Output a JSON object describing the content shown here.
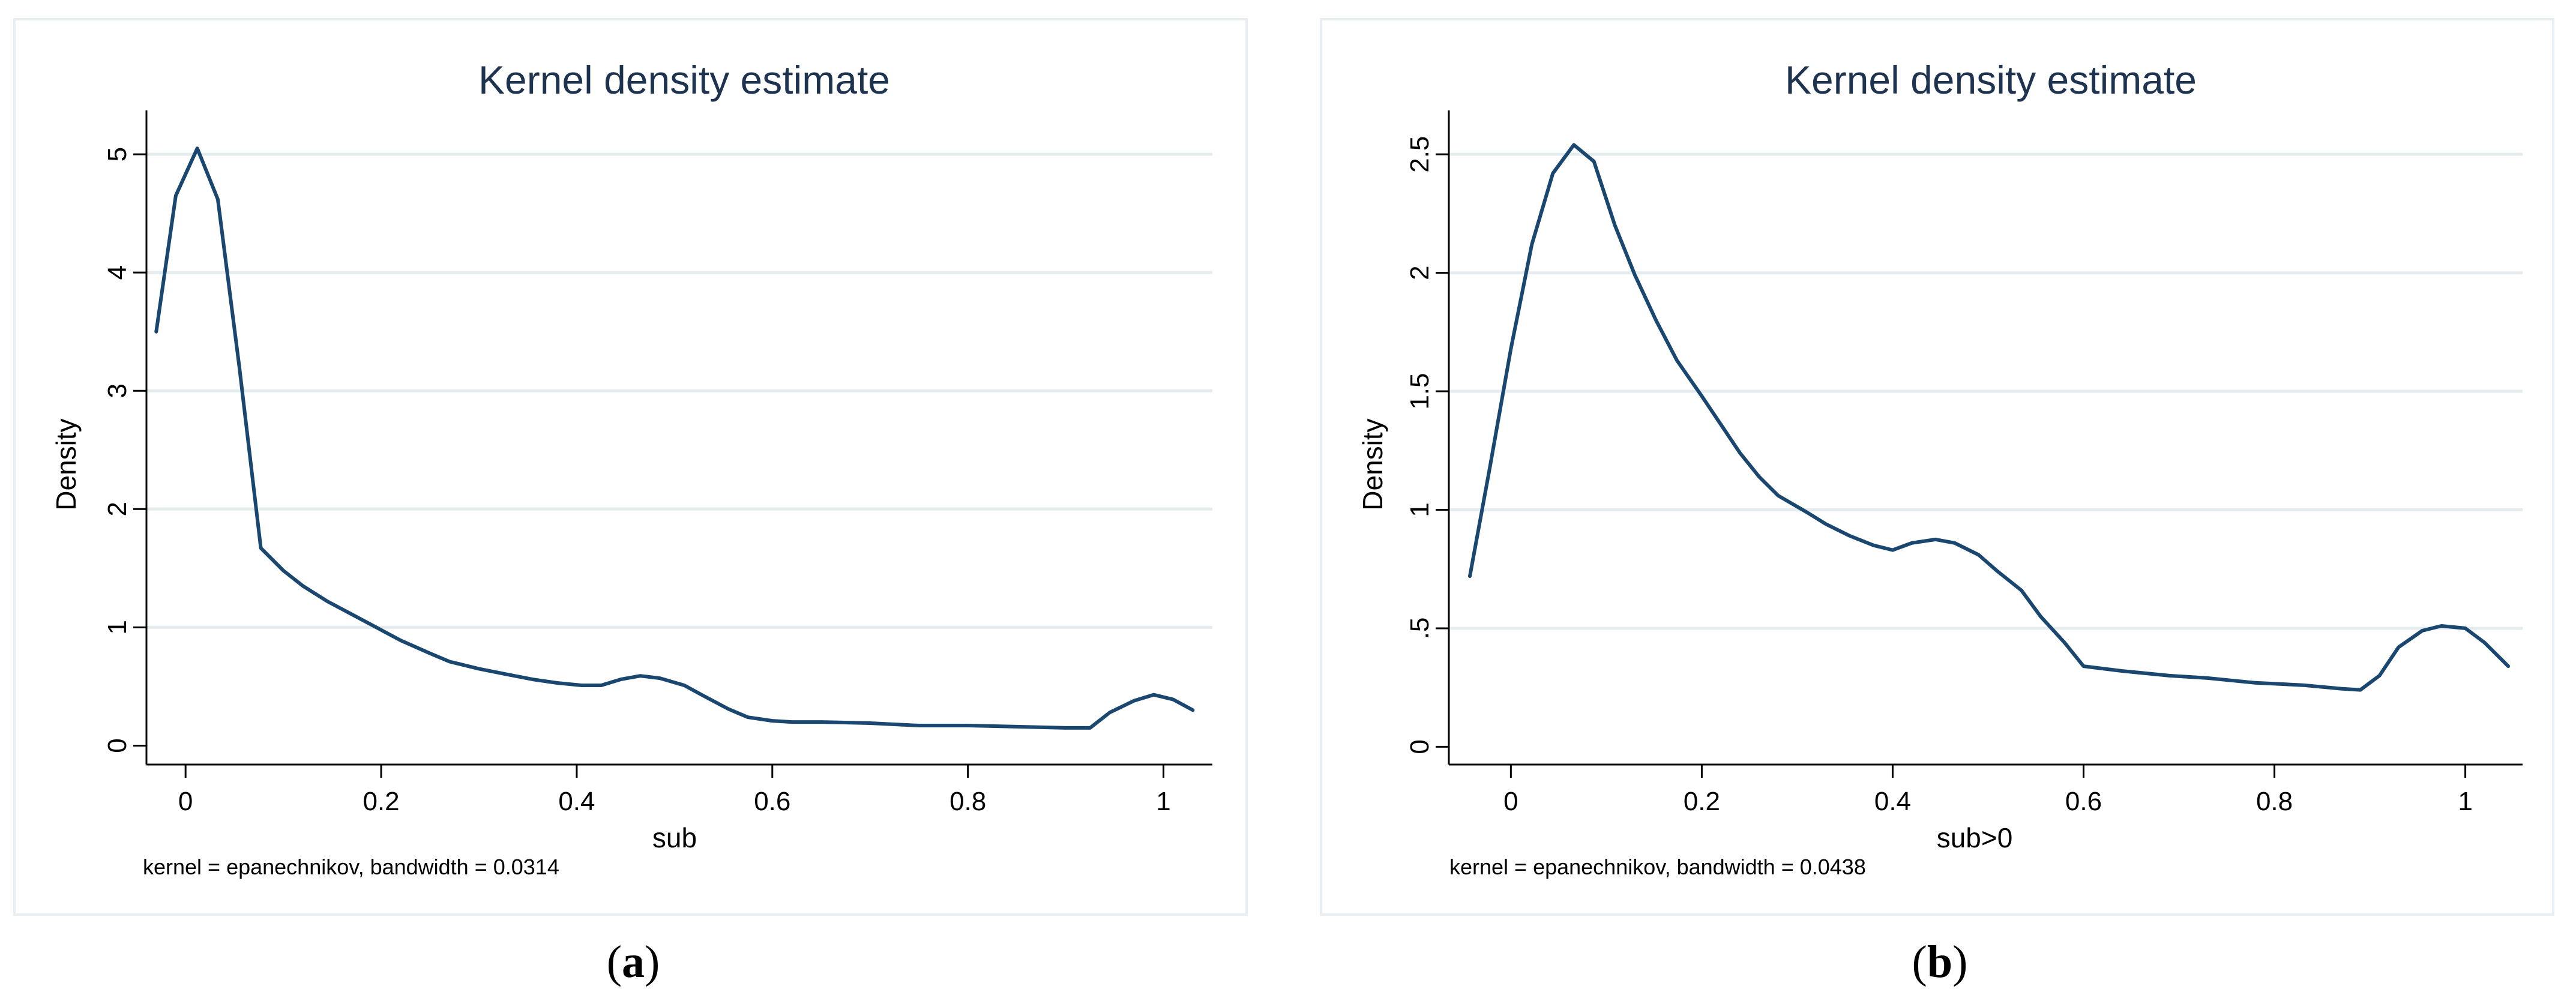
{
  "chart_data": [
    {
      "type": "line",
      "title": "Kernel density estimate",
      "xlabel": "sub",
      "ylabel": "Density",
      "note": "kernel = epanechnikov, bandwidth = 0.0314",
      "caption_label": "a",
      "caption_open": "(",
      "caption_close": ")",
      "xlim": [
        -0.04,
        1.05
      ],
      "ylim": [
        -0.16,
        5.32
      ],
      "xticks": [
        0,
        0.2,
        0.4,
        0.6,
        0.8,
        1
      ],
      "xtick_labels": [
        "0",
        "0.2",
        "0.4",
        "0.6",
        "0.8",
        "1"
      ],
      "yticks": [
        0,
        1,
        2,
        3,
        4,
        5
      ],
      "ytick_labels": [
        "0",
        "1",
        "2",
        "3",
        "4",
        "5"
      ],
      "grid": true,
      "color": "#1a476f",
      "x": [
        -0.03,
        -0.01,
        0.012,
        0.033,
        0.055,
        0.077,
        0.1,
        0.12,
        0.145,
        0.17,
        0.195,
        0.22,
        0.25,
        0.27,
        0.3,
        0.33,
        0.355,
        0.38,
        0.405,
        0.425,
        0.445,
        0.465,
        0.485,
        0.51,
        0.53,
        0.555,
        0.575,
        0.6,
        0.62,
        0.65,
        0.7,
        0.75,
        0.8,
        0.85,
        0.9,
        0.925,
        0.945,
        0.97,
        0.99,
        1.01,
        1.03
      ],
      "y": [
        3.5,
        4.65,
        5.05,
        4.62,
        3.2,
        1.67,
        1.48,
        1.35,
        1.22,
        1.11,
        1.0,
        0.89,
        0.78,
        0.71,
        0.65,
        0.6,
        0.56,
        0.53,
        0.51,
        0.51,
        0.56,
        0.59,
        0.57,
        0.51,
        0.42,
        0.31,
        0.24,
        0.21,
        0.2,
        0.2,
        0.19,
        0.17,
        0.17,
        0.16,
        0.15,
        0.15,
        0.28,
        0.38,
        0.43,
        0.39,
        0.3
      ]
    },
    {
      "type": "line",
      "title": "Kernel density estimate",
      "xlabel": "sub>0",
      "ylabel": "Density",
      "note": "kernel = epanechnikov, bandwidth = 0.0438",
      "caption_label": "b",
      "caption_open": "(",
      "caption_close": ")",
      "xlim": [
        -0.065,
        1.06
      ],
      "ylim": [
        -0.075,
        2.66
      ],
      "xticks": [
        0,
        0.2,
        0.4,
        0.6,
        0.8,
        1
      ],
      "xtick_labels": [
        "0",
        "0.2",
        "0.4",
        "0.6",
        "0.8",
        "1"
      ],
      "yticks": [
        0,
        0.5,
        1,
        1.5,
        2,
        2.5
      ],
      "ytick_labels": [
        "0",
        ".5",
        "1",
        "1.5",
        "2",
        "2.5"
      ],
      "grid": true,
      "color": "#1a476f",
      "x": [
        -0.043,
        -0.022,
        0.0,
        0.022,
        0.044,
        0.066,
        0.087,
        0.109,
        0.13,
        0.152,
        0.174,
        0.2,
        0.22,
        0.24,
        0.26,
        0.28,
        0.31,
        0.33,
        0.355,
        0.38,
        0.4,
        0.42,
        0.445,
        0.465,
        0.49,
        0.51,
        0.535,
        0.555,
        0.58,
        0.6,
        0.64,
        0.69,
        0.73,
        0.78,
        0.83,
        0.87,
        0.89,
        0.91,
        0.93,
        0.955,
        0.975,
        1.0,
        1.02,
        1.045
      ],
      "y": [
        0.72,
        1.18,
        1.68,
        2.12,
        2.42,
        2.54,
        2.47,
        2.2,
        1.99,
        1.8,
        1.63,
        1.48,
        1.36,
        1.24,
        1.14,
        1.06,
        0.99,
        0.94,
        0.89,
        0.85,
        0.83,
        0.86,
        0.875,
        0.86,
        0.81,
        0.74,
        0.66,
        0.55,
        0.44,
        0.34,
        0.32,
        0.3,
        0.29,
        0.27,
        0.26,
        0.245,
        0.24,
        0.3,
        0.42,
        0.49,
        0.51,
        0.5,
        0.44,
        0.34
      ]
    }
  ]
}
